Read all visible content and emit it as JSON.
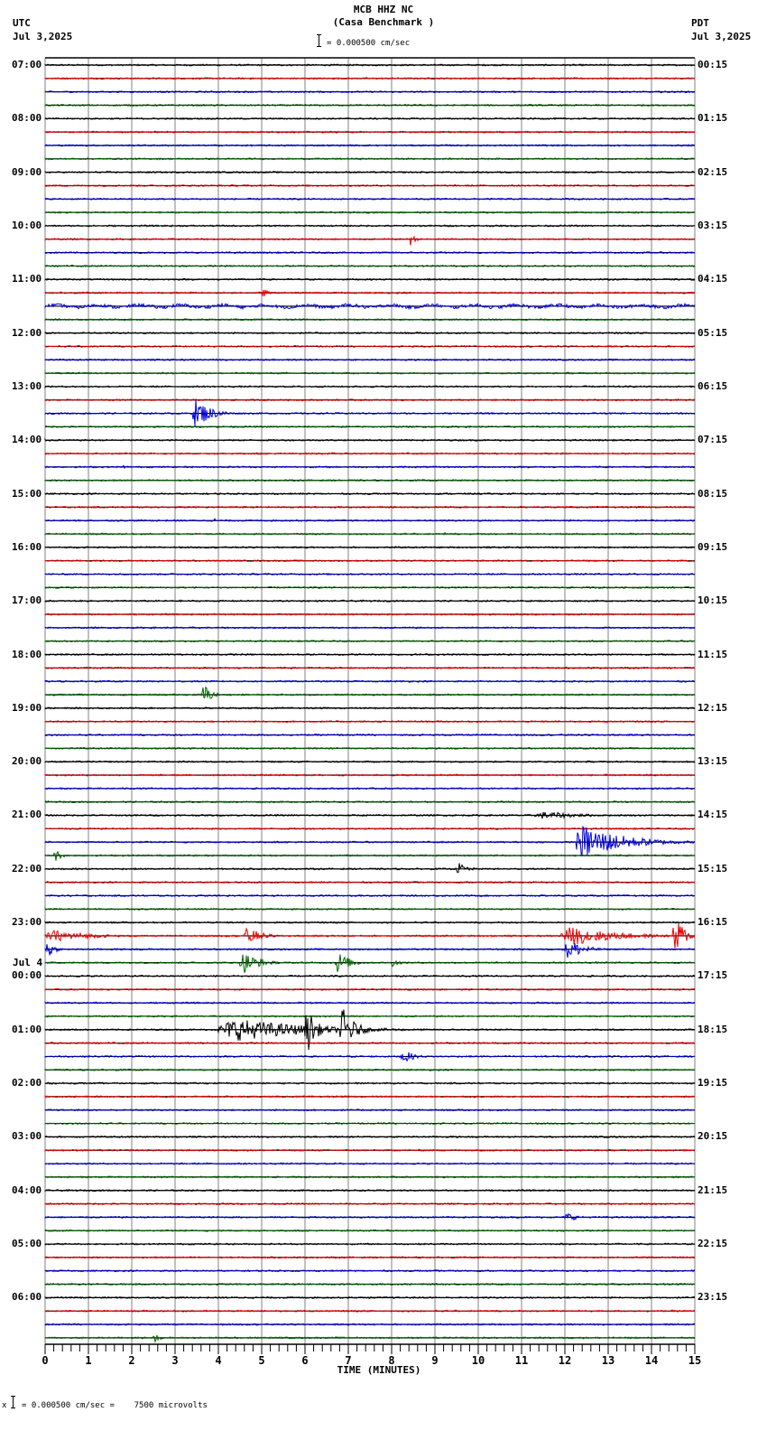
{
  "header": {
    "station": "MCB HHZ NC",
    "location": "(Casa Benchmark )",
    "left_tz": "UTC",
    "left_date": "Jul 3,2025",
    "right_tz": "PDT",
    "right_date": "Jul 3,2025",
    "scale_text": "= 0.000500 cm/sec"
  },
  "footer": {
    "scale_note": "= 0.000500 cm/sec =    7500 microvolts",
    "prefix": "x"
  },
  "colors": {
    "trace_cycle": [
      "#000000",
      "#ee0000",
      "#0000dd",
      "#006600"
    ],
    "grid": "#808080",
    "baseline": "#000000"
  },
  "chart_data": {
    "type": "line",
    "title": "MCB HHZ NC (Casa Benchmark )",
    "subtitle": "Helicorder seismogram, 15-minute lines, 4 lines per hour",
    "xlabel": "TIME (MINUTES)",
    "ylabel": "",
    "x_range": [
      0,
      15
    ],
    "x_ticks": [
      0,
      1,
      2,
      3,
      4,
      5,
      6,
      7,
      8,
      9,
      10,
      11,
      12,
      13,
      14,
      15
    ],
    "minor_tick_step": 0.2,
    "grid": true,
    "rows": 96,
    "rows_per_hour": 4,
    "scale": "0.000500 cm/sec = 7500 microvolts",
    "left_labels": [
      {
        "row": 0,
        "text": "07:00"
      },
      {
        "row": 4,
        "text": "08:00"
      },
      {
        "row": 8,
        "text": "09:00"
      },
      {
        "row": 12,
        "text": "10:00"
      },
      {
        "row": 16,
        "text": "11:00"
      },
      {
        "row": 20,
        "text": "12:00"
      },
      {
        "row": 24,
        "text": "13:00"
      },
      {
        "row": 28,
        "text": "14:00"
      },
      {
        "row": 32,
        "text": "15:00"
      },
      {
        "row": 36,
        "text": "16:00"
      },
      {
        "row": 40,
        "text": "17:00"
      },
      {
        "row": 44,
        "text": "18:00"
      },
      {
        "row": 48,
        "text": "19:00"
      },
      {
        "row": 52,
        "text": "20:00"
      },
      {
        "row": 56,
        "text": "21:00"
      },
      {
        "row": 60,
        "text": "22:00"
      },
      {
        "row": 64,
        "text": "23:00"
      },
      {
        "row": 68,
        "text": "00:00",
        "date": "Jul 4"
      },
      {
        "row": 72,
        "text": "01:00"
      },
      {
        "row": 76,
        "text": "02:00"
      },
      {
        "row": 80,
        "text": "03:00"
      },
      {
        "row": 84,
        "text": "04:00"
      },
      {
        "row": 88,
        "text": "05:00"
      },
      {
        "row": 92,
        "text": "06:00"
      }
    ],
    "right_labels": [
      {
        "row": 0,
        "text": "00:15"
      },
      {
        "row": 4,
        "text": "01:15"
      },
      {
        "row": 8,
        "text": "02:15"
      },
      {
        "row": 12,
        "text": "03:15"
      },
      {
        "row": 16,
        "text": "04:15"
      },
      {
        "row": 20,
        "text": "05:15"
      },
      {
        "row": 24,
        "text": "06:15"
      },
      {
        "row": 28,
        "text": "07:15"
      },
      {
        "row": 32,
        "text": "08:15"
      },
      {
        "row": 36,
        "text": "09:15"
      },
      {
        "row": 40,
        "text": "10:15"
      },
      {
        "row": 44,
        "text": "11:15"
      },
      {
        "row": 48,
        "text": "12:15"
      },
      {
        "row": 52,
        "text": "13:15"
      },
      {
        "row": 56,
        "text": "14:15"
      },
      {
        "row": 60,
        "text": "15:15"
      },
      {
        "row": 64,
        "text": "16:15"
      },
      {
        "row": 68,
        "text": "17:15"
      },
      {
        "row": 72,
        "text": "18:15"
      },
      {
        "row": 76,
        "text": "19:15"
      },
      {
        "row": 80,
        "text": "20:15"
      },
      {
        "row": 84,
        "text": "21:15"
      },
      {
        "row": 88,
        "text": "22:15"
      },
      {
        "row": 92,
        "text": "23:15"
      }
    ],
    "events": [
      {
        "row": 13,
        "start": 8.4,
        "dur": 0.3,
        "amp": 8
      },
      {
        "row": 17,
        "start": 5.0,
        "dur": 0.3,
        "amp": 6
      },
      {
        "row": 18,
        "start": 0.0,
        "dur": 15.0,
        "amp": 2,
        "wavy": true
      },
      {
        "row": 26,
        "start": 3.4,
        "dur": 1.0,
        "amp": 16
      },
      {
        "row": 30,
        "start": 1.8,
        "dur": 0.1,
        "amp": 3
      },
      {
        "row": 34,
        "start": 3.9,
        "dur": 0.1,
        "amp": 3
      },
      {
        "row": 35,
        "start": 9.2,
        "dur": 0.1,
        "amp": 3
      },
      {
        "row": 47,
        "start": 3.6,
        "dur": 0.5,
        "amp": 14
      },
      {
        "row": 56,
        "start": 11.3,
        "dur": 2.7,
        "amp": 4
      },
      {
        "row": 58,
        "start": 12.2,
        "dur": 2.8,
        "amp": 18
      },
      {
        "row": 59,
        "start": 0.2,
        "dur": 0.4,
        "amp": 7
      },
      {
        "row": 60,
        "start": 9.5,
        "dur": 0.6,
        "amp": 7
      },
      {
        "row": 65,
        "start": 0.0,
        "dur": 2.6,
        "amp": 6
      },
      {
        "row": 65,
        "start": 4.6,
        "dur": 0.9,
        "amp": 10
      },
      {
        "row": 65,
        "start": 11.9,
        "dur": 3.1,
        "amp": 10
      },
      {
        "row": 65,
        "start": 14.5,
        "dur": 0.5,
        "amp": 30
      },
      {
        "row": 66,
        "start": 0.0,
        "dur": 0.4,
        "amp": 14
      },
      {
        "row": 66,
        "start": 12.0,
        "dur": 1.0,
        "amp": 12
      },
      {
        "row": 67,
        "start": 4.5,
        "dur": 1.0,
        "amp": 12
      },
      {
        "row": 67,
        "start": 6.7,
        "dur": 0.8,
        "amp": 12
      },
      {
        "row": 67,
        "start": 8.0,
        "dur": 0.4,
        "amp": 5
      },
      {
        "row": 72,
        "start": 4.0,
        "dur": 5.0,
        "amp": 12
      },
      {
        "row": 72,
        "start": 6.0,
        "dur": 0.6,
        "amp": 26
      },
      {
        "row": 72,
        "start": 6.8,
        "dur": 0.8,
        "amp": 24
      },
      {
        "row": 74,
        "start": 8.2,
        "dur": 0.7,
        "amp": 8
      },
      {
        "row": 86,
        "start": 12.0,
        "dur": 0.6,
        "amp": 6
      },
      {
        "row": 95,
        "start": 2.5,
        "dur": 0.3,
        "amp": 6
      }
    ]
  }
}
